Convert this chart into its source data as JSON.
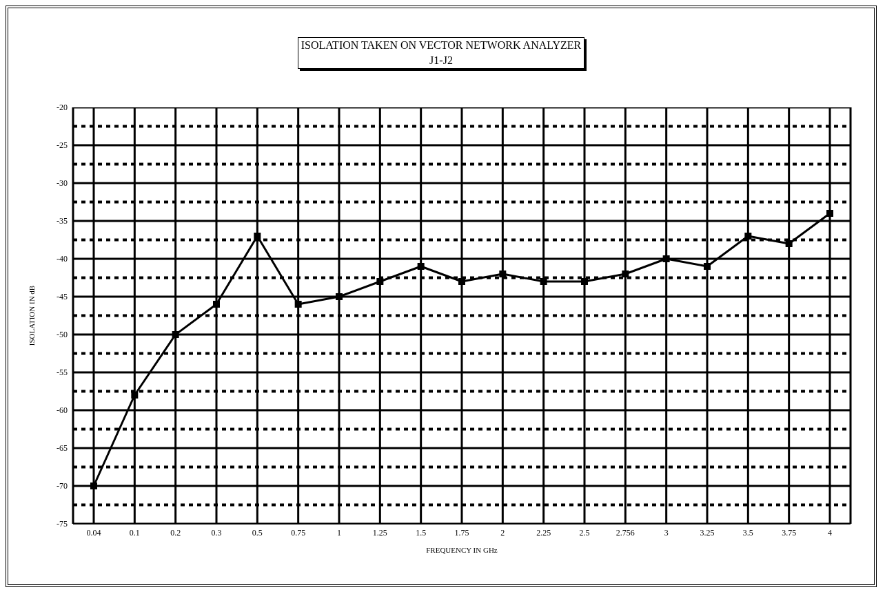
{
  "chart_data": {
    "type": "line",
    "title": "ISOLATION TAKEN ON VECTOR NETWORK ANALYZER",
    "subtitle": "J1-J2",
    "xlabel": "FREQUENCY IN GHz",
    "ylabel": "ISOLATION IN dB",
    "categories": [
      "0.04",
      "0.1",
      "0.2",
      "0.3",
      "0.5",
      "0.75",
      "1",
      "1.25",
      "1.5",
      "1.75",
      "2",
      "2.25",
      "2.5",
      "2.756",
      "3",
      "3.25",
      "3.5",
      "3.75",
      "4"
    ],
    "series": [
      {
        "color": "#000000",
        "values": [
          -70,
          -58,
          -50,
          -46,
          -37,
          -46,
          -45,
          -43,
          -41,
          -43,
          -42,
          -43,
          -43,
          -42,
          -40,
          -41,
          -37,
          -38,
          -34
        ]
      }
    ],
    "ylim": [
      -75,
      -20
    ],
    "yticks": [
      -75,
      {
        "value": -72.5,
        "label": null
      },
      -70,
      {
        "value": -67.5,
        "label": null
      },
      -65,
      {
        "value": -62.5,
        "label": null
      },
      -60,
      {
        "value": -57.5,
        "label": null
      },
      -55,
      {
        "value": -52.5,
        "label": null
      },
      -50,
      {
        "value": -47.5,
        "label": null
      },
      -45,
      {
        "value": -42.5,
        "label": null
      },
      -40,
      {
        "value": -37.5,
        "label": null
      },
      -35,
      {
        "value": -32.5,
        "label": null
      },
      -30,
      {
        "value": -27.5,
        "label": null
      },
      -25,
      {
        "value": -22.5,
        "label": null
      },
      -20
    ],
    "grid": true,
    "marker": "square",
    "line_style": "solid"
  }
}
